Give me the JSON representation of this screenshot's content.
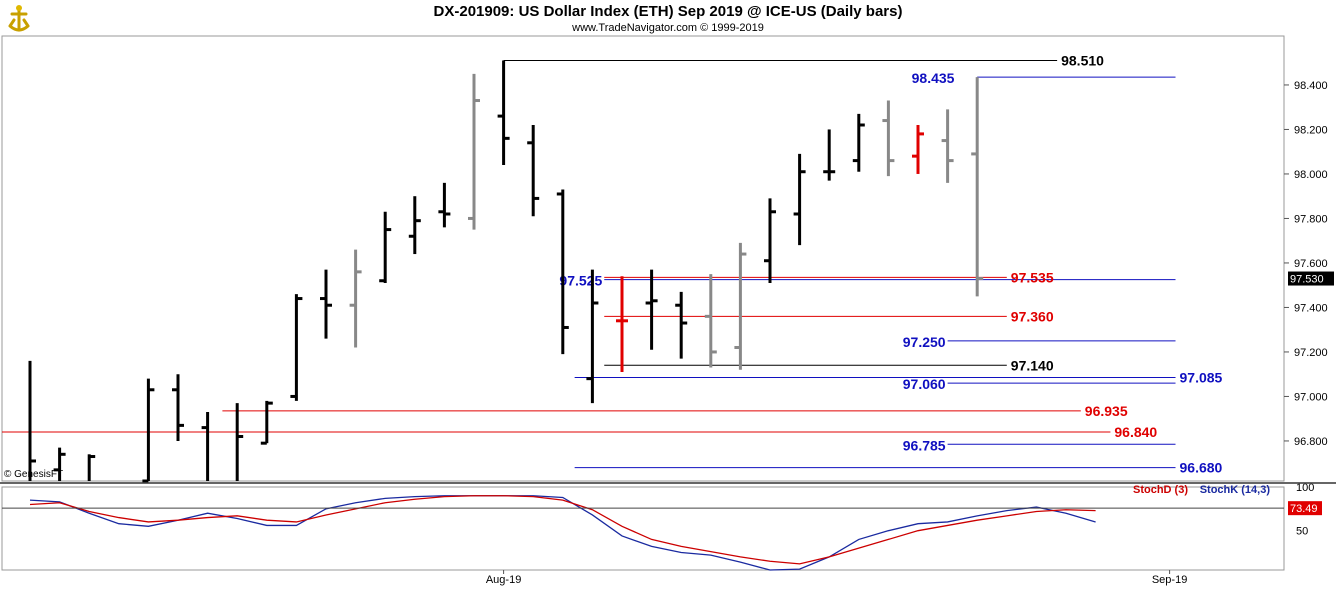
{
  "header": {
    "title": "DX-201909:  US Dollar Index (ETH) Sep 2019 @ ICE-US  (Daily bars)",
    "subtitle": "www.TradeNavigator.com © 1999-2019",
    "copyright": "© GenesisFT"
  },
  "colors": {
    "up": "#000000",
    "inside": "#888888",
    "down": "#e00000",
    "blue": "#1010c0",
    "red": "#e00000",
    "stoch_k": "#1a2aa0",
    "stoch_d": "#cc0000"
  },
  "chart_data": [
    {
      "type": "ohlc",
      "ylim": [
        96.62,
        98.62
      ],
      "yticks": [
        "98.400",
        "98.200",
        "98.000",
        "97.800",
        "97.600",
        "97.400",
        "97.200",
        "97.000",
        "96.800"
      ],
      "last_price": "97.530",
      "xtick_labels": [
        {
          "label": "Aug-19",
          "bar": 16
        },
        {
          "label": "Sep-19",
          "bar": 38.5
        }
      ],
      "bars": [
        {
          "o": null,
          "h": 97.16,
          "l": 96.62,
          "c": 96.71,
          "color": "up"
        },
        {
          "o": 96.67,
          "h": 96.77,
          "l": 96.62,
          "c": 96.74,
          "color": "up"
        },
        {
          "o": null,
          "h": 96.74,
          "l": 96.62,
          "c": 96.73,
          "color": "up"
        },
        {
          "o": null,
          "h": null,
          "l": null,
          "c": null,
          "color": "up"
        },
        {
          "o": 96.62,
          "h": 97.08,
          "l": 96.62,
          "c": 97.03,
          "color": "up"
        },
        {
          "o": 97.03,
          "h": 97.1,
          "l": 96.8,
          "c": 96.87,
          "color": "up"
        },
        {
          "o": 96.86,
          "h": 96.93,
          "l": 96.62,
          "c": null,
          "color": "up"
        },
        {
          "o": null,
          "h": 96.97,
          "l": 96.62,
          "c": 96.82,
          "color": "up"
        },
        {
          "o": 96.79,
          "h": 96.98,
          "l": 96.79,
          "c": 96.97,
          "color": "up"
        },
        {
          "o": 97.0,
          "h": 97.46,
          "l": 96.98,
          "c": 97.44,
          "color": "up"
        },
        {
          "o": 97.44,
          "h": 97.57,
          "l": 97.26,
          "c": 97.41,
          "color": "up"
        },
        {
          "o": 97.41,
          "h": 97.66,
          "l": 97.22,
          "c": 97.56,
          "color": "inside"
        },
        {
          "o": 97.52,
          "h": 97.83,
          "l": 97.51,
          "c": 97.75,
          "color": "up"
        },
        {
          "o": 97.72,
          "h": 97.9,
          "l": 97.64,
          "c": 97.79,
          "color": "up"
        },
        {
          "o": 97.83,
          "h": 97.96,
          "l": 97.76,
          "c": 97.82,
          "color": "up"
        },
        {
          "o": 97.8,
          "h": 98.45,
          "l": 97.75,
          "c": 98.33,
          "color": "inside"
        },
        {
          "o": 98.26,
          "h": 98.51,
          "l": 98.04,
          "c": 98.16,
          "color": "up"
        },
        {
          "o": 98.14,
          "h": 98.22,
          "l": 97.81,
          "c": 97.89,
          "color": "up"
        },
        {
          "o": 97.91,
          "h": 97.93,
          "l": 97.19,
          "c": 97.31,
          "color": "up"
        },
        {
          "o": 97.08,
          "h": 97.57,
          "l": 96.97,
          "c": 97.42,
          "color": "up"
        },
        {
          "o": 97.34,
          "h": 97.54,
          "l": 97.11,
          "c": 97.34,
          "color": "down"
        },
        {
          "o": 97.42,
          "h": 97.57,
          "l": 97.21,
          "c": 97.43,
          "color": "up"
        },
        {
          "o": 97.41,
          "h": 97.47,
          "l": 97.17,
          "c": 97.33,
          "color": "up"
        },
        {
          "o": 97.36,
          "h": 97.55,
          "l": 97.13,
          "c": 97.2,
          "color": "inside"
        },
        {
          "o": 97.22,
          "h": 97.69,
          "l": 97.12,
          "c": 97.64,
          "color": "inside"
        },
        {
          "o": 97.61,
          "h": 97.89,
          "l": 97.51,
          "c": 97.83,
          "color": "up"
        },
        {
          "o": 97.82,
          "h": 98.09,
          "l": 97.68,
          "c": 98.01,
          "color": "up"
        },
        {
          "o": 98.01,
          "h": 98.2,
          "l": 97.97,
          "c": 98.01,
          "color": "up"
        },
        {
          "o": 98.06,
          "h": 98.27,
          "l": 98.01,
          "c": 98.22,
          "color": "up"
        },
        {
          "o": 98.24,
          "h": 98.33,
          "l": 97.99,
          "c": 98.06,
          "color": "inside"
        },
        {
          "o": 98.08,
          "h": 98.22,
          "l": 98.0,
          "c": 98.18,
          "color": "down"
        },
        {
          "o": 98.15,
          "h": 98.29,
          "l": 97.96,
          "c": 98.06,
          "color": "inside"
        },
        {
          "o": 98.09,
          "h": 98.435,
          "l": 97.45,
          "c": 97.53,
          "color": "inside"
        }
      ],
      "levels": [
        {
          "value": 98.51,
          "label": "98.510",
          "color": "#000000",
          "from": 16,
          "to": 34.7,
          "label_pos": "right",
          "bold": false
        },
        {
          "value": 98.435,
          "label": "98.435",
          "color": "#1010c0",
          "from": 32,
          "to": 38.7,
          "label_pos": "left-big",
          "bold": true
        },
        {
          "value": 97.525,
          "label": "97.525",
          "color": "#1010c0",
          "from": 19.4,
          "to": 38.7,
          "label_pos": "mid",
          "bold": true
        },
        {
          "value": 97.535,
          "label": "97.535",
          "color": "#e00000",
          "from": 19.4,
          "to": 33,
          "label_pos": "red",
          "bold": true
        },
        {
          "value": 97.36,
          "label": "97.360",
          "color": "#e00000",
          "from": 19.4,
          "to": 33,
          "label_pos": "red",
          "bold": true
        },
        {
          "value": 97.25,
          "label": "97.250",
          "color": "#1010c0",
          "from": 31,
          "to": 38.7,
          "label_pos": "mid",
          "bold": true
        },
        {
          "value": 97.14,
          "label": "97.140",
          "color": "#000000",
          "from": 19.4,
          "to": 33,
          "label_pos": "right",
          "bold": false
        },
        {
          "value": 97.085,
          "label": "97.085",
          "color": "#1010c0",
          "from": 18.4,
          "to": 38.7,
          "label_pos": "far",
          "bold": true
        },
        {
          "value": 97.06,
          "label": "97.060",
          "color": "#1010c0",
          "from": 31,
          "to": 38.7,
          "label_pos": "mid",
          "bold": true
        },
        {
          "value": 96.935,
          "label": "96.935",
          "color": "#e00000",
          "from": 6.5,
          "to": 35.5,
          "label_pos": "red",
          "bold": true
        },
        {
          "value": 96.84,
          "label": "96.840",
          "color": "#e00000",
          "from": -1,
          "to": 36.5,
          "label_pos": "red",
          "bold": true
        },
        {
          "value": 96.785,
          "label": "96.785",
          "color": "#1010c0",
          "from": 31,
          "to": 38.7,
          "label_pos": "mid",
          "bold": true
        },
        {
          "value": 96.68,
          "label": "96.680",
          "color": "#1010c0",
          "from": 18.4,
          "to": 38.7,
          "label_pos": "far",
          "bold": true
        }
      ]
    },
    {
      "type": "line",
      "title": "",
      "ylim": [
        5,
        100
      ],
      "yticks": [
        "100",
        "50"
      ],
      "current_value": "73.49",
      "legend": [
        "StochD (3)",
        "StochK (14,3)"
      ],
      "series": [
        {
          "name": "StochK (14,3)",
          "color": "#1a2aa0",
          "values": [
            85,
            83,
            70,
            58,
            55,
            62,
            70,
            64,
            56,
            56,
            75,
            82,
            87,
            89,
            90,
            90,
            90,
            90,
            88,
            68,
            44,
            32,
            25,
            22,
            14,
            5,
            6,
            20,
            40,
            50,
            58,
            60,
            67,
            73,
            77,
            70,
            60
          ]
        },
        {
          "name": "StochD (3)",
          "color": "#cc0000",
          "values": [
            80,
            82,
            72,
            65,
            60,
            62,
            65,
            67,
            62,
            60,
            68,
            75,
            82,
            86,
            89,
            90,
            90,
            89,
            85,
            74,
            55,
            40,
            32,
            26,
            20,
            15,
            12,
            20,
            30,
            40,
            50,
            56,
            62,
            67,
            72,
            74,
            73
          ]
        }
      ]
    }
  ]
}
